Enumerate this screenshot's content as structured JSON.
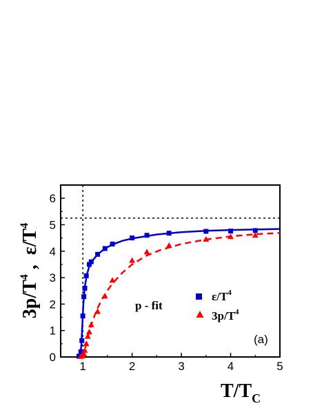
{
  "chart_data": {
    "type": "scatter",
    "xlim": [
      0.55,
      5
    ],
    "ylim": [
      0,
      6.5
    ],
    "x_ticks": [
      "1",
      "2",
      "3",
      "4",
      "5"
    ],
    "x_tick_values": [
      1,
      2,
      3,
      4,
      5
    ],
    "y_ticks": [
      "0",
      "1",
      "2",
      "3",
      "4",
      "5",
      "6"
    ],
    "y_tick_values": [
      0,
      1,
      2,
      3,
      4,
      5,
      6
    ],
    "xlabel": {
      "main": "T/T",
      "sub": "C"
    },
    "ylabel": {
      "part1": "3p/T",
      "sup1": "4",
      "sep": " ,  ",
      "part2": "ε/T",
      "sup2": "4"
    },
    "reference_lines": {
      "x": 1.0,
      "y": 5.25
    },
    "annotation": "p - fit",
    "panel_label": "(a)",
    "grid": false,
    "legend_position": "center-right",
    "series": [
      {
        "name": "ε/T",
        "name_sup": "4",
        "marker": "square",
        "line_style": "solid",
        "color": "#0000cc",
        "points": [
          {
            "x": 0.92,
            "y": 0.03
          },
          {
            "x": 0.96,
            "y": 0.2
          },
          {
            "x": 0.98,
            "y": 0.62
          },
          {
            "x": 1.0,
            "y": 1.55
          },
          {
            "x": 1.02,
            "y": 2.28
          },
          {
            "x": 1.04,
            "y": 2.6
          },
          {
            "x": 1.07,
            "y": 3.07
          },
          {
            "x": 1.13,
            "y": 3.5
          },
          {
            "x": 1.17,
            "y": 3.6
          },
          {
            "x": 1.3,
            "y": 3.88
          },
          {
            "x": 1.45,
            "y": 4.1
          },
          {
            "x": 1.6,
            "y": 4.27
          },
          {
            "x": 2.0,
            "y": 4.5
          },
          {
            "x": 2.3,
            "y": 4.6
          },
          {
            "x": 2.75,
            "y": 4.68
          },
          {
            "x": 3.5,
            "y": 4.75
          },
          {
            "x": 4.0,
            "y": 4.76
          },
          {
            "x": 4.5,
            "y": 4.78
          }
        ],
        "fit": [
          {
            "x": 0.92,
            "y": 0.02
          },
          {
            "x": 0.95,
            "y": 0.1
          },
          {
            "x": 0.97,
            "y": 0.45
          },
          {
            "x": 0.99,
            "y": 1.2
          },
          {
            "x": 1.01,
            "y": 2.0
          },
          {
            "x": 1.04,
            "y": 2.65
          },
          {
            "x": 1.08,
            "y": 3.1
          },
          {
            "x": 1.13,
            "y": 3.42
          },
          {
            "x": 1.2,
            "y": 3.65
          },
          {
            "x": 1.3,
            "y": 3.88
          },
          {
            "x": 1.45,
            "y": 4.1
          },
          {
            "x": 1.6,
            "y": 4.25
          },
          {
            "x": 1.8,
            "y": 4.39
          },
          {
            "x": 2.0,
            "y": 4.48
          },
          {
            "x": 2.5,
            "y": 4.63
          },
          {
            "x": 3.0,
            "y": 4.72
          },
          {
            "x": 3.5,
            "y": 4.77
          },
          {
            "x": 4.0,
            "y": 4.8
          },
          {
            "x": 4.5,
            "y": 4.82
          },
          {
            "x": 5.0,
            "y": 4.84
          }
        ]
      },
      {
        "name": "3p/T",
        "name_sup": "4",
        "marker": "triangle",
        "line_style": "dashed",
        "color": "#ff0000",
        "points": [
          {
            "x": 0.96,
            "y": 0.02
          },
          {
            "x": 1.0,
            "y": 0.05
          },
          {
            "x": 1.02,
            "y": 0.12
          },
          {
            "x": 1.04,
            "y": 0.25
          },
          {
            "x": 1.07,
            "y": 0.5
          },
          {
            "x": 1.1,
            "y": 0.78
          },
          {
            "x": 1.13,
            "y": 0.95
          },
          {
            "x": 1.17,
            "y": 1.22
          },
          {
            "x": 1.3,
            "y": 1.72
          },
          {
            "x": 1.45,
            "y": 2.3
          },
          {
            "x": 1.6,
            "y": 2.9
          },
          {
            "x": 2.0,
            "y": 3.65
          },
          {
            "x": 2.3,
            "y": 3.97
          },
          {
            "x": 2.75,
            "y": 4.22
          },
          {
            "x": 3.5,
            "y": 4.45
          },
          {
            "x": 4.0,
            "y": 4.55
          },
          {
            "x": 4.5,
            "y": 4.6
          }
        ],
        "fit": [
          {
            "x": 0.97,
            "y": 0.0
          },
          {
            "x": 1.0,
            "y": 0.04
          },
          {
            "x": 1.03,
            "y": 0.18
          },
          {
            "x": 1.06,
            "y": 0.42
          },
          {
            "x": 1.1,
            "y": 0.75
          },
          {
            "x": 1.15,
            "y": 1.08
          },
          {
            "x": 1.2,
            "y": 1.38
          },
          {
            "x": 1.3,
            "y": 1.85
          },
          {
            "x": 1.4,
            "y": 2.22
          },
          {
            "x": 1.5,
            "y": 2.52
          },
          {
            "x": 1.6,
            "y": 2.77
          },
          {
            "x": 1.8,
            "y": 3.18
          },
          {
            "x": 2.0,
            "y": 3.5
          },
          {
            "x": 2.3,
            "y": 3.84
          },
          {
            "x": 2.6,
            "y": 4.06
          },
          {
            "x": 3.0,
            "y": 4.27
          },
          {
            "x": 3.5,
            "y": 4.44
          },
          {
            "x": 4.0,
            "y": 4.56
          },
          {
            "x": 4.5,
            "y": 4.64
          },
          {
            "x": 5.0,
            "y": 4.69
          }
        ]
      }
    ]
  }
}
